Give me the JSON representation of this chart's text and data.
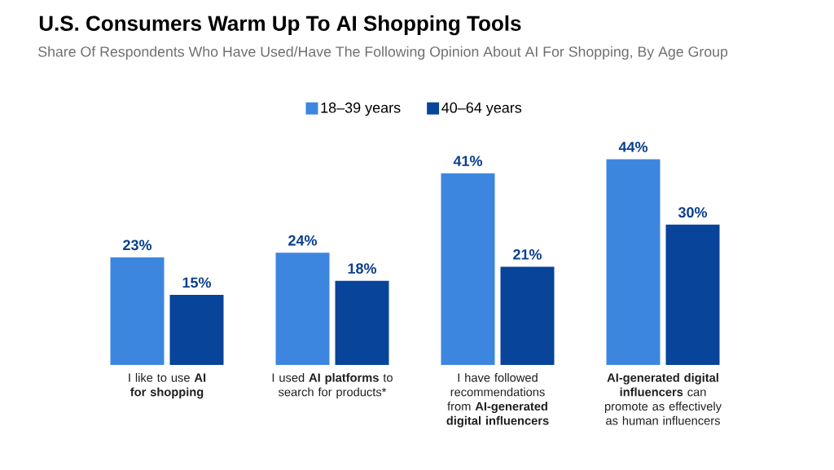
{
  "chart_data": {
    "type": "bar",
    "title": "U.S. Consumers Warm Up To AI Shopping Tools",
    "subtitle": "Share Of Respondents Who Have Used/Have The Following Opinion About AI For Shopping, By Age Group",
    "categories": [
      "I like to use **AI for shopping**",
      "I used **AI platforms** to search for products*",
      "I have followed recommendations from **AI-generated digital influencers**",
      "**AI-generated digital influencers** can promote as effectively as human influencers"
    ],
    "series": [
      {
        "name": "18–39 years",
        "color": "#3d86e0",
        "values": [
          23,
          24,
          41,
          44
        ],
        "value_labels": [
          "23%",
          "24%",
          "41%",
          "44%"
        ]
      },
      {
        "name": "40–64 years",
        "color": "#07449a",
        "values": [
          15,
          18,
          21,
          30
        ],
        "value_labels": [
          "15%",
          "18%",
          "21%",
          "30%"
        ]
      }
    ],
    "legend": "top"
  }
}
